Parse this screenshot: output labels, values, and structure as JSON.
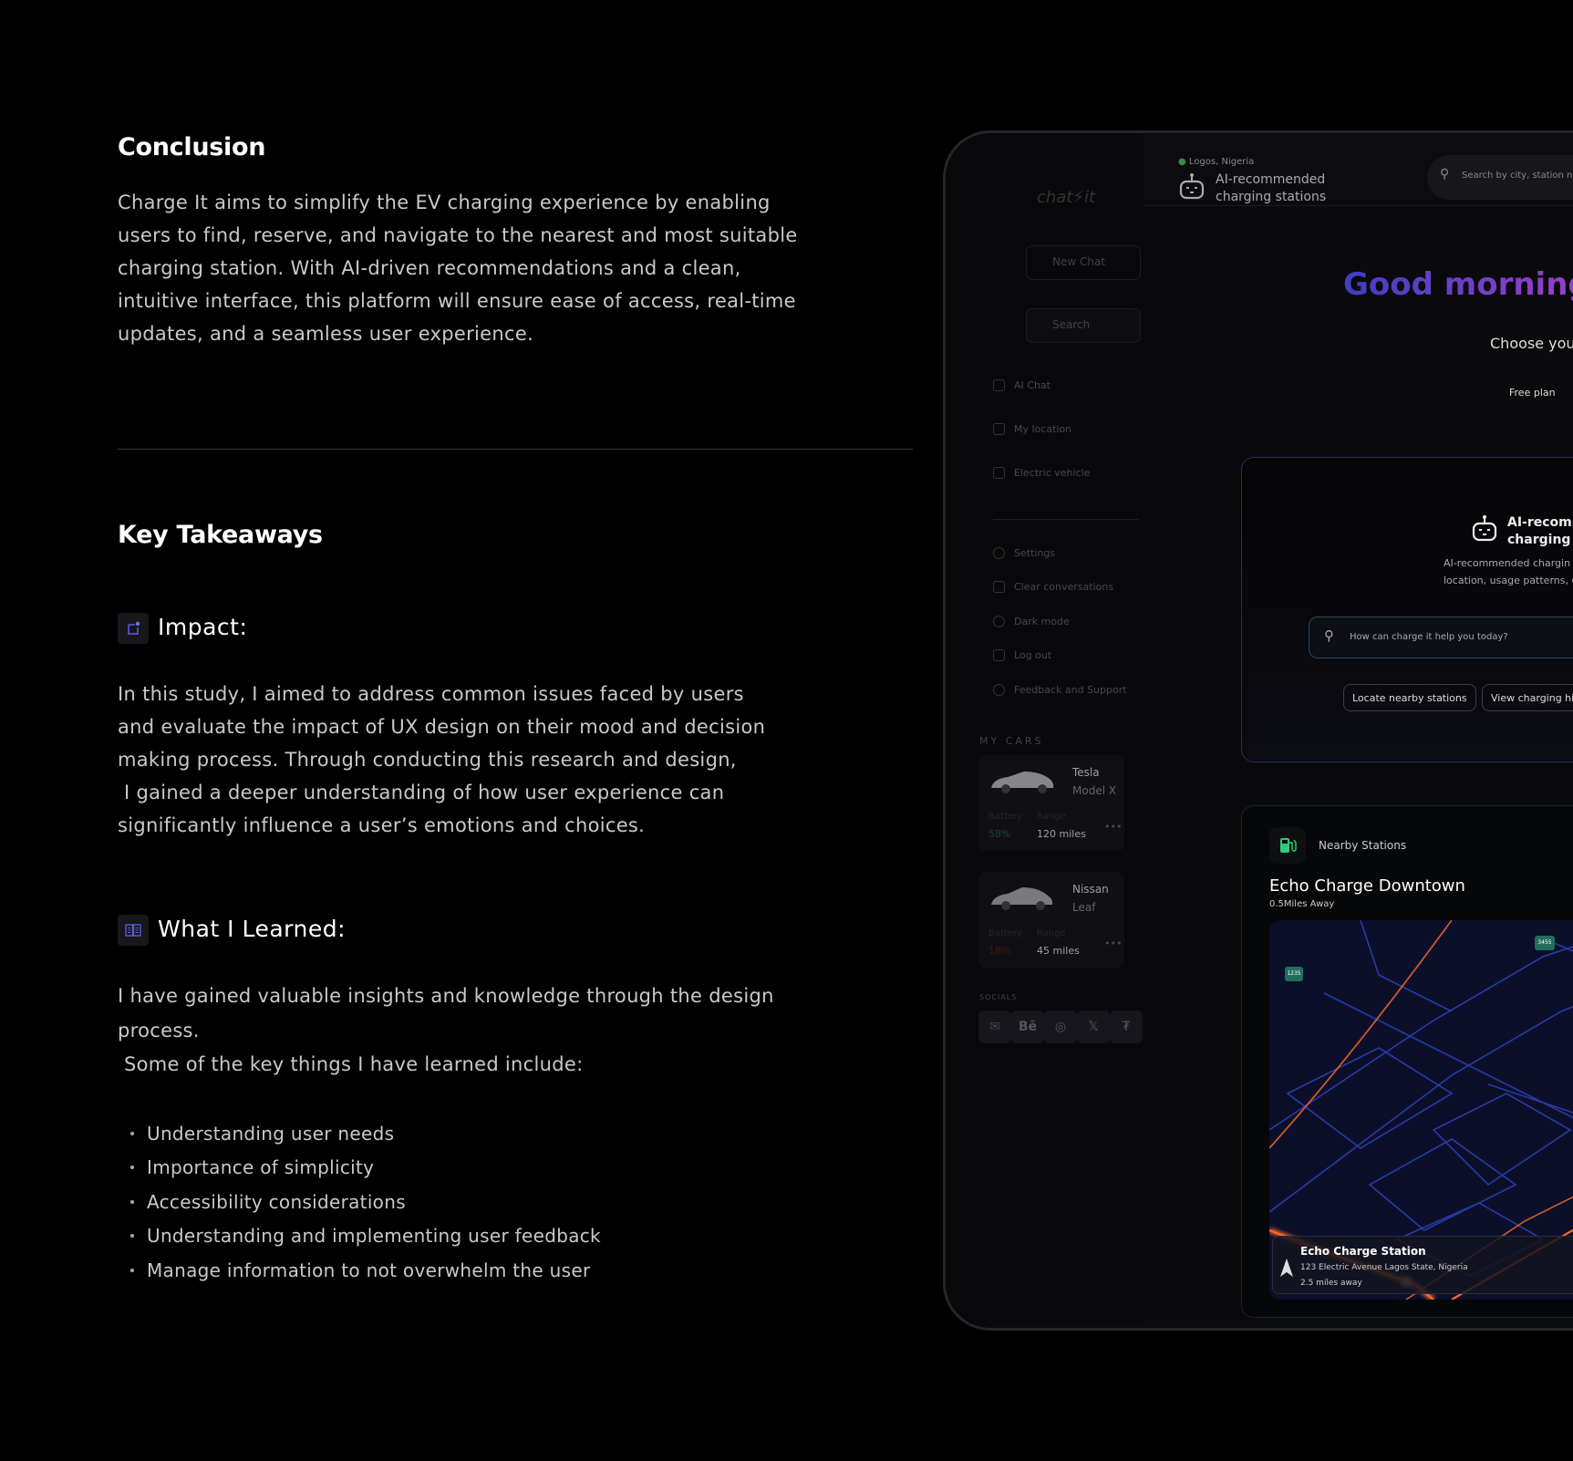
{
  "conclusion": {
    "title": "Conclusion",
    "lines": [
      "Charge It aims to simplify the EV charging experience by enabling",
      "users to find, reserve, and navigate to the nearest and most suitable",
      "charging station. With AI-driven recommendations and a clean,",
      "intuitive interface, this platform will ensure ease of access, real-time",
      "updates, and a seamless user experience."
    ]
  },
  "takeaways": {
    "title": "Key Takeaways",
    "impact": {
      "icon": "note-icon",
      "title": "Impact:",
      "lines": [
        "In this study, I aimed to address common issues faced by users",
        "and evaluate the impact of UX design on their mood and decision",
        "making process. Through conducting this research and design,",
        " I gained a deeper understanding of how user experience can",
        "significantly influence a user’s emotions and choices."
      ]
    },
    "learned": {
      "icon": "book-icon",
      "title": "What I Learned:",
      "lines": [
        "I have gained valuable insights and knowledge through the design",
        "process.",
        " Some of the key things I have learned include:"
      ],
      "bullets": [
        "Understanding user needs",
        "Importance of simplicity",
        "Accessibility considerations",
        "Understanding and implementing user feedback",
        "Manage information to not overwhelm the user"
      ]
    }
  },
  "app": {
    "sidebar": {
      "logo": "chat⚡it",
      "new_chat": "New Chat",
      "search": "Search",
      "menu": [
        "AI Chat",
        "My location",
        "Electric vehicle"
      ],
      "settings_menu": [
        "Settings",
        "Clear conversations",
        "Dark mode",
        "Log out",
        "Feedback and Support"
      ],
      "my_cars_label": "MY CARS",
      "cars": [
        {
          "make": "Tesla",
          "model": "Model X",
          "battery_label": "Battery",
          "battery": "58%",
          "range_label": "Range",
          "range": "120 miles",
          "battery_color": "#2fa36b"
        },
        {
          "make": "Nissan",
          "model": "Leaf",
          "battery_label": "Battery",
          "battery": "18%",
          "range_label": "Range",
          "range": "45 miles",
          "battery_color": "#c0392b"
        }
      ],
      "socials_label": "SOCIALS",
      "socials": [
        "mail-icon",
        "behance-icon",
        "instagram-icon",
        "x-icon",
        "framer-icon"
      ]
    },
    "header": {
      "location": "Logos, Nigeria",
      "title_line1": "AI-recommended",
      "title_line2": "charging stations",
      "search_placeholder": "Search by city, station nam"
    },
    "greeting": "Good morning,",
    "choose": "Choose you",
    "plan": "Free plan",
    "ai_card": {
      "title_line1": "AI-recomm",
      "title_line2": "charging st",
      "desc_line1": "AI-recommended chargin",
      "desc_line2": "location, usage patterns, c",
      "input_placeholder": "How can charge it help you today?",
      "actions": [
        "Locate nearby stations",
        "View charging hi"
      ]
    },
    "nearby": {
      "label": "Nearby Stations",
      "station": "Echo Charge  Downtown",
      "distance": "0.5Miles Away",
      "map_badges": [
        "1235",
        "3455"
      ],
      "overlay": {
        "name": "Echo Charge Station",
        "address": "123 Electric Avenue Lagos State, Nigeria",
        "distance": "2.5 miles away"
      }
    },
    "colors": {
      "greeting_start": "#3d3fc4",
      "greeting_end": "#a43fc6",
      "accent_green": "#2ecc71",
      "badge": "#1f6e5e"
    }
  }
}
